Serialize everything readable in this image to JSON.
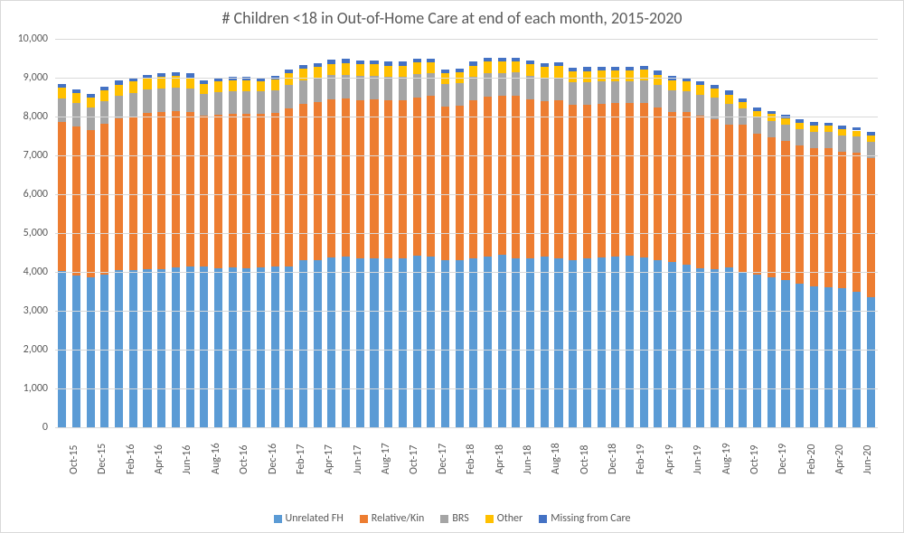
{
  "chart": {
    "type": "stacked-bar",
    "title": "# Children <18 in Out-of-Home Care at end of each month, 2015-2020",
    "title_fontsize": 18,
    "title_color": "#595959",
    "background_color": "#ffffff",
    "border_color": "#d9d9d9",
    "grid_color": "#d9d9d9",
    "axis_label_color": "#595959",
    "axis_label_fontsize": 12,
    "y_axis": {
      "min": 0,
      "max": 10000,
      "tick_step": 1000,
      "tick_labels": [
        "0",
        "1,000",
        "2,000",
        "3,000",
        "4,000",
        "5,000",
        "6,000",
        "7,000",
        "8,000",
        "9,000",
        "10,000"
      ]
    },
    "x_tick_step": 2,
    "bar_width_ratio": 0.58,
    "series": [
      {
        "key": "unrelated_fh",
        "label": "Unrelated FH",
        "color": "#5b9bd5"
      },
      {
        "key": "relative_kin",
        "label": "Relative/Kin",
        "color": "#ed7d31"
      },
      {
        "key": "brs",
        "label": "BRS",
        "color": "#a5a5a5"
      },
      {
        "key": "other",
        "label": "Other",
        "color": "#ffc000"
      },
      {
        "key": "missing",
        "label": "Missing from Care",
        "color": "#4472c4"
      }
    ],
    "categories": [
      "Oct-15",
      "Nov-15",
      "Dec-15",
      "Jan-16",
      "Feb-16",
      "Mar-16",
      "Apr-16",
      "May-16",
      "Jun-16",
      "Jul-16",
      "Aug-16",
      "Sep-16",
      "Oct-16",
      "Nov-16",
      "Dec-16",
      "Jan-17",
      "Feb-17",
      "Mar-17",
      "Apr-17",
      "May-17",
      "Jun-17",
      "Jul-17",
      "Aug-17",
      "Sep-17",
      "Oct-17",
      "Nov-17",
      "Dec-17",
      "Jan-18",
      "Feb-18",
      "Mar-18",
      "Apr-18",
      "May-18",
      "Jun-18",
      "Jul-18",
      "Aug-18",
      "Sep-18",
      "Oct-18",
      "Nov-18",
      "Dec-18",
      "Jan-19",
      "Feb-19",
      "Mar-19",
      "Apr-19",
      "May-19",
      "Jun-19",
      "Jul-19",
      "Aug-19",
      "Sep-19",
      "Oct-19",
      "Nov-19",
      "Dec-19",
      "Jan-20",
      "Feb-20",
      "Mar-20",
      "Apr-20",
      "May-20",
      "Jun-20",
      "Jul-20"
    ],
    "data": {
      "unrelated_fh": [
        4030,
        3900,
        3870,
        3920,
        4050,
        4040,
        4080,
        4080,
        4120,
        4150,
        4130,
        4100,
        4120,
        4100,
        4120,
        4130,
        4150,
        4300,
        4310,
        4380,
        4400,
        4350,
        4340,
        4350,
        4350,
        4420,
        4400,
        4300,
        4300,
        4350,
        4390,
        4440,
        4350,
        4340,
        4400,
        4350,
        4300,
        4340,
        4370,
        4400,
        4420,
        4370,
        4310,
        4250,
        4180,
        4100,
        4080,
        4120,
        3980,
        3930,
        3870,
        3800,
        3700,
        3620,
        3600,
        3580,
        3500,
        3350
      ],
      "relative_kin": [
        3830,
        3850,
        3780,
        3900,
        3900,
        3970,
        4010,
        4030,
        4020,
        3960,
        3900,
        3950,
        3940,
        3970,
        3960,
        3970,
        4070,
        4020,
        4060,
        4060,
        4060,
        4080,
        4100,
        4060,
        4060,
        4080,
        4130,
        3960,
        3970,
        4070,
        4130,
        4090,
        4190,
        4110,
        3990,
        4070,
        4000,
        3970,
        3950,
        3940,
        3920,
        3980,
        3930,
        3870,
        3930,
        3920,
        3850,
        3670,
        3800,
        3620,
        3590,
        3570,
        3560,
        3570,
        3580,
        3520,
        3560,
        3590
      ],
      "brs": [
        600,
        590,
        580,
        580,
        590,
        600,
        600,
        610,
        610,
        610,
        550,
        570,
        580,
        580,
        570,
        570,
        600,
        610,
        610,
        620,
        620,
        610,
        610,
        610,
        610,
        600,
        590,
        580,
        590,
        600,
        600,
        590,
        590,
        600,
        600,
        590,
        580,
        580,
        580,
        570,
        570,
        570,
        570,
        560,
        550,
        550,
        550,
        540,
        430,
        430,
        430,
        420,
        420,
        420,
        420,
        420,
        420,
        420
      ],
      "other": [
        280,
        260,
        250,
        270,
        280,
        290,
        290,
        300,
        300,
        290,
        260,
        280,
        280,
        280,
        250,
        280,
        290,
        300,
        300,
        300,
        300,
        300,
        290,
        290,
        290,
        290,
        280,
        280,
        280,
        290,
        290,
        290,
        290,
        290,
        290,
        290,
        280,
        280,
        280,
        280,
        280,
        280,
        270,
        260,
        250,
        240,
        240,
        240,
        170,
        170,
        170,
        170,
        160,
        160,
        160,
        160,
        160,
        160
      ],
      "missing": [
        100,
        100,
        100,
        100,
        100,
        100,
        100,
        100,
        100,
        100,
        100,
        100,
        100,
        100,
        100,
        100,
        100,
        100,
        100,
        100,
        100,
        100,
        100,
        100,
        100,
        100,
        100,
        100,
        100,
        100,
        100,
        100,
        100,
        100,
        100,
        100,
        100,
        100,
        100,
        100,
        100,
        100,
        100,
        100,
        100,
        100,
        100,
        100,
        80,
        80,
        80,
        80,
        80,
        80,
        80,
        80,
        80,
        80
      ]
    }
  }
}
